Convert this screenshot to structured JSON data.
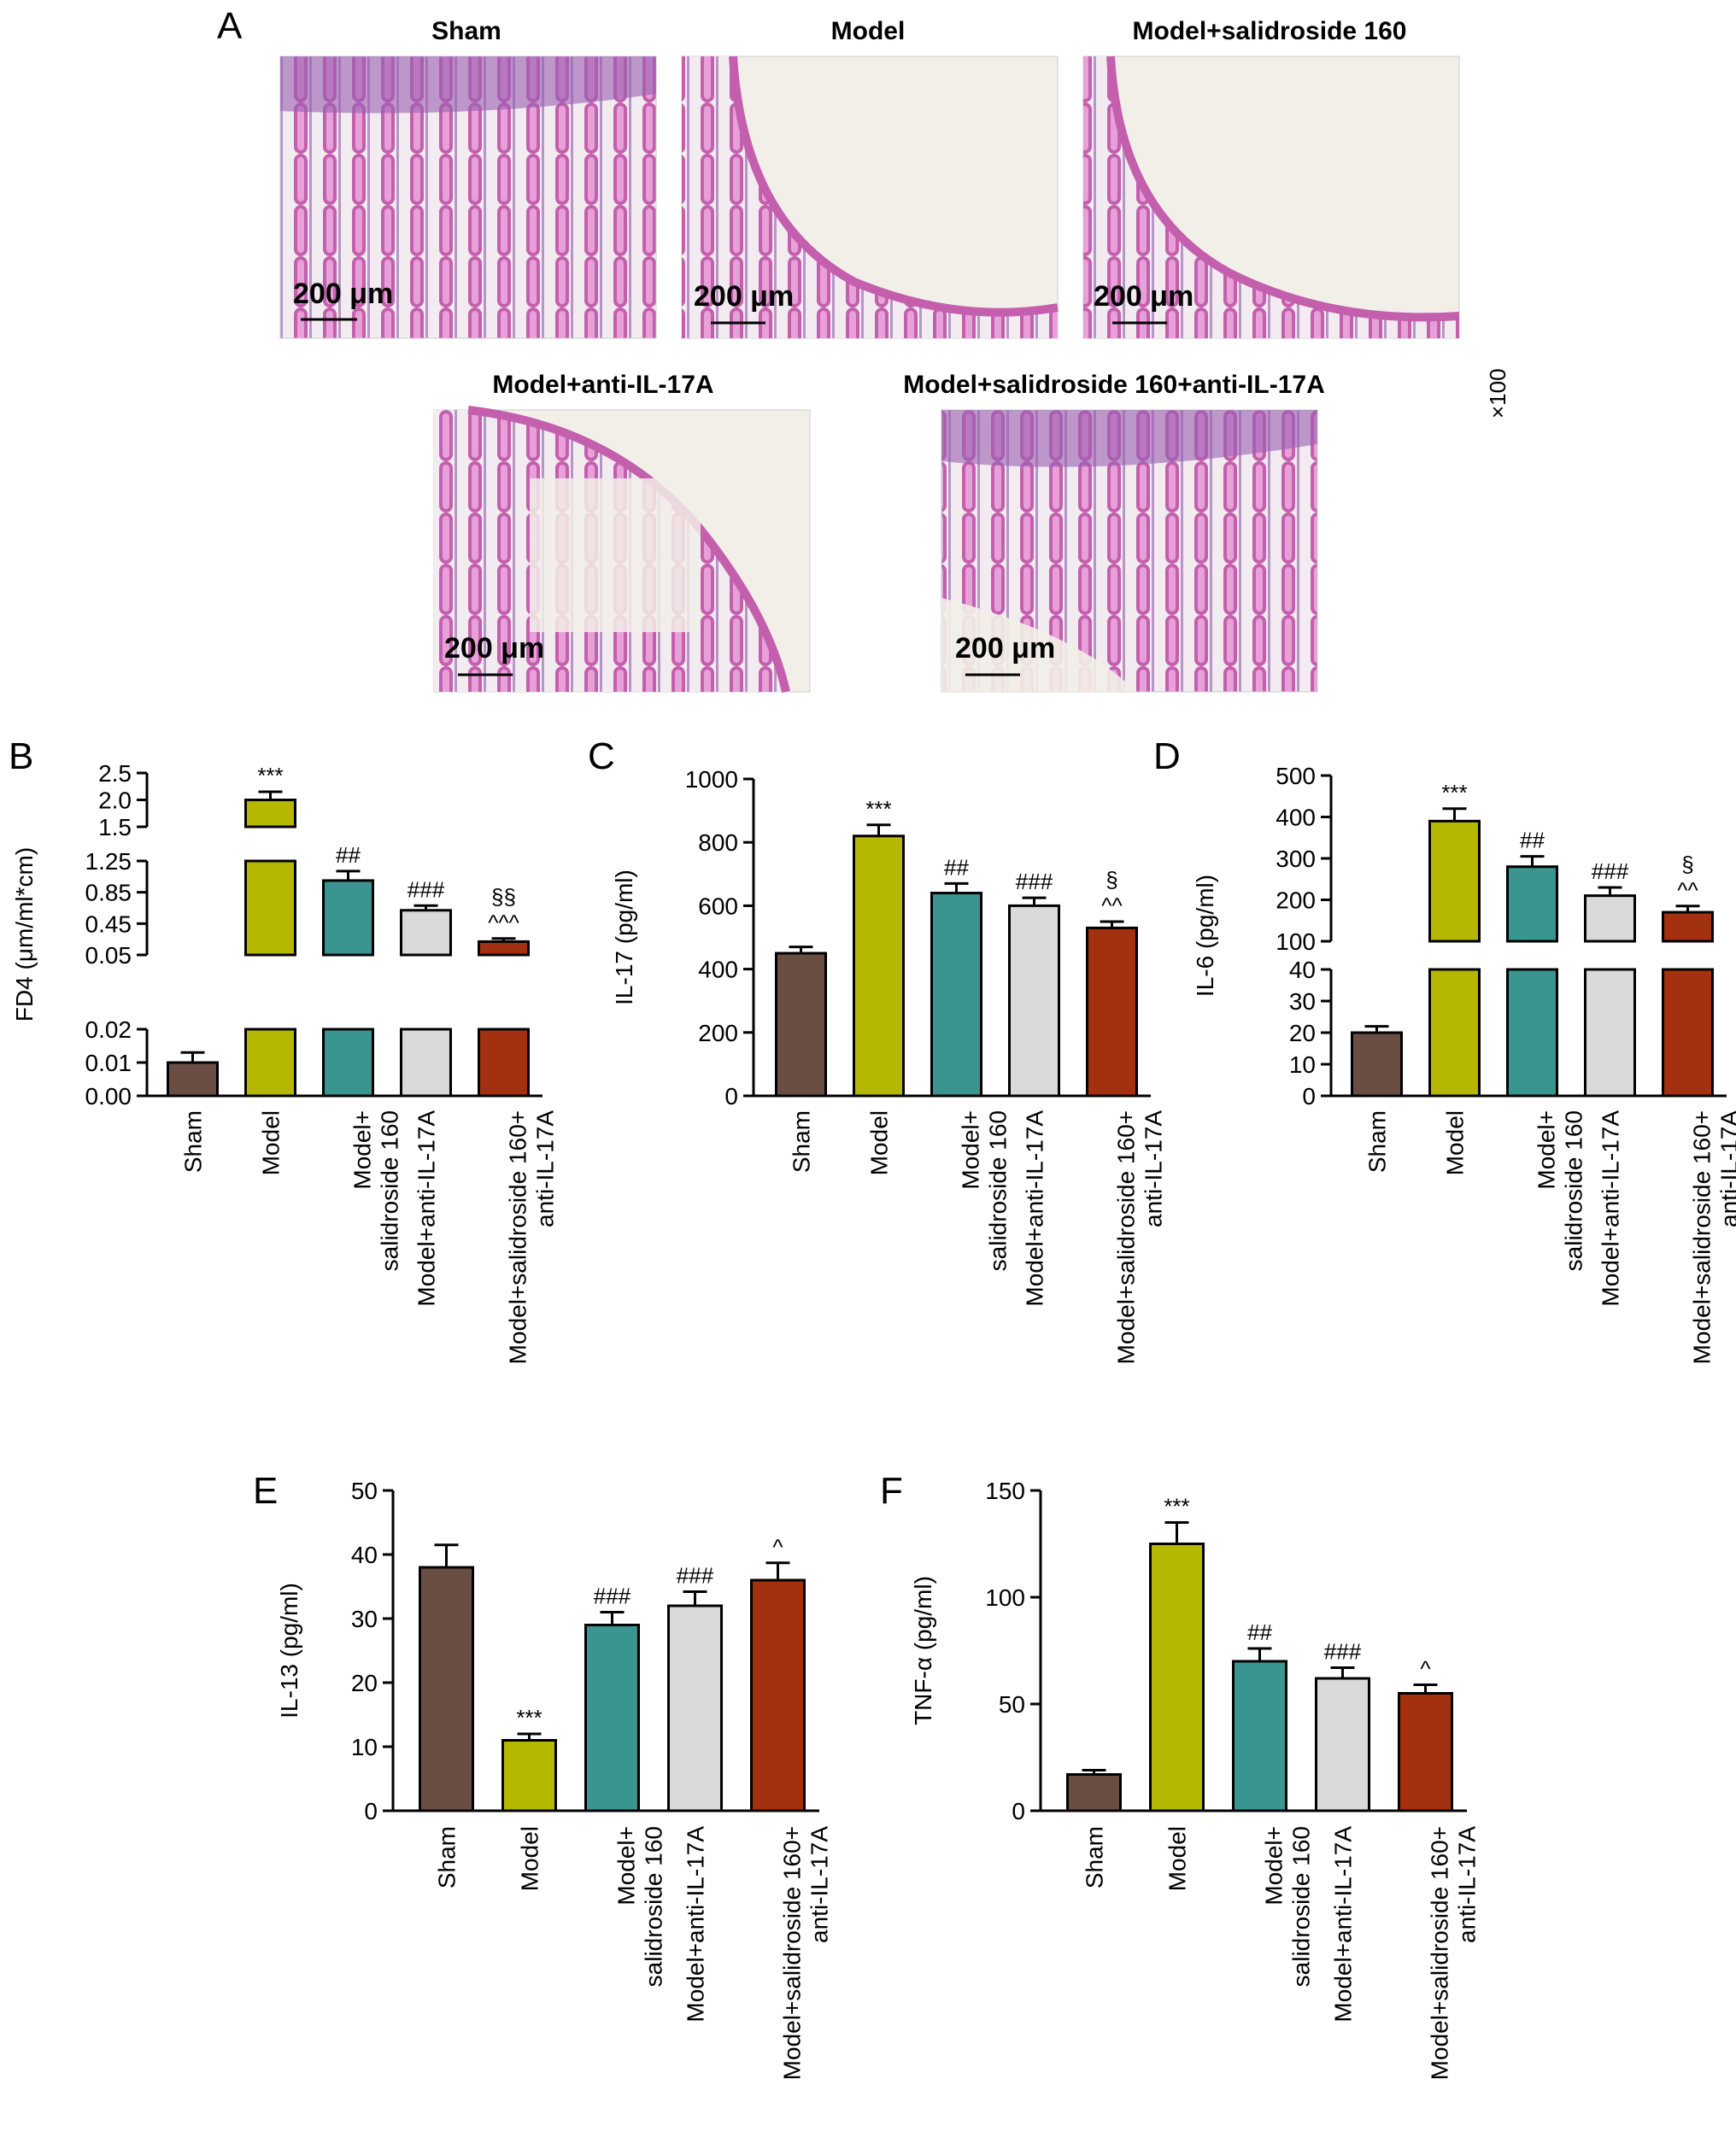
{
  "panel_a": {
    "letter": "A",
    "magnification": "×100",
    "images": [
      {
        "caption": "Sham",
        "scale_label": "200 μm"
      },
      {
        "caption": "Model",
        "scale_label": "200 μm"
      },
      {
        "caption": "Model+salidroside 160",
        "scale_label": "200 μm"
      },
      {
        "caption": "Model+anti-IL-17A",
        "scale_label": "200 μm"
      },
      {
        "caption": "Model+salidroside 160+anti-IL-17A",
        "scale_label": "200 μm"
      }
    ]
  },
  "colors": {
    "Sham": "#6b4e43",
    "Model": "#b5b800",
    "Model+salidroside 160": "#3a9590",
    "Model+anti-IL-17A": "#d9d9d9",
    "Model+salidroside 160+anti-IL-17A": "#a3300f",
    "histology": "#b24fa6"
  },
  "chart_data": [
    {
      "panel": "B",
      "type": "bar",
      "ylabel": "FD4 (μm/ml*cm)",
      "broken_axis": true,
      "segments": [
        {
          "range": [
            0.0,
            0.02
          ],
          "ticks": [
            "0.00",
            "0.01",
            "0.02"
          ]
        },
        {
          "range": [
            0.05,
            1.25
          ],
          "ticks": [
            "0.05",
            "0.45",
            "0.85",
            "1.25"
          ]
        },
        {
          "range": [
            1.5,
            2.5
          ],
          "ticks": [
            "1.5",
            "2.0",
            "2.5"
          ]
        }
      ],
      "categories": [
        "Sham",
        "Model",
        "Model+\nsalidroside 160",
        "Model+anti-IL-17A",
        "Model+salidroside 160+\nanti-IL-17A"
      ],
      "values": [
        0.01,
        2.0,
        1.0,
        0.62,
        0.22
      ],
      "errors": [
        0.003,
        0.15,
        0.12,
        0.06,
        0.04
      ],
      "annotations": [
        "",
        "***",
        "##",
        "###",
        "§§\n^^^"
      ]
    },
    {
      "panel": "C",
      "type": "bar",
      "ylabel": "IL-17 (pg/ml)",
      "ylim": [
        0,
        1000
      ],
      "ticks": [
        "0",
        "200",
        "400",
        "600",
        "800",
        "1000"
      ],
      "categories": [
        "Sham",
        "Model",
        "Model+\nsalidroside 160",
        "Model+anti-IL-17A",
        "Model+salidroside 160+\nanti-IL-17A"
      ],
      "values": [
        450,
        820,
        640,
        600,
        530
      ],
      "errors": [
        20,
        35,
        30,
        25,
        20
      ],
      "annotations": [
        "",
        "***",
        "##",
        "###",
        "§\n^^"
      ]
    },
    {
      "panel": "D",
      "type": "bar",
      "ylabel": "IL-6 (pg/ml)",
      "broken_axis": true,
      "segments": [
        {
          "range": [
            0,
            40
          ],
          "ticks": [
            "0",
            "10",
            "20",
            "30",
            "40"
          ]
        },
        {
          "range": [
            100,
            500
          ],
          "ticks": [
            "100",
            "200",
            "300",
            "400",
            "500"
          ]
        }
      ],
      "categories": [
        "Sham",
        "Model",
        "Model+\nsalidroside 160",
        "Model+anti-IL-17A",
        "Model+salidroside 160+\nanti-IL-17A"
      ],
      "values": [
        20,
        390,
        280,
        210,
        170
      ],
      "errors": [
        2,
        30,
        25,
        20,
        15
      ],
      "annotations": [
        "",
        "***",
        "##",
        "###",
        "§\n^^"
      ]
    },
    {
      "panel": "E",
      "type": "bar",
      "ylabel": "IL-13 (pg/ml)",
      "ylim": [
        0,
        50
      ],
      "ticks": [
        "0",
        "10",
        "20",
        "30",
        "40",
        "50"
      ],
      "categories": [
        "Sham",
        "Model",
        "Model+\nsalidroside 160",
        "Model+anti-IL-17A",
        "Model+salidroside 160+\nanti-IL-17A"
      ],
      "values": [
        38,
        11,
        29,
        32,
        36
      ],
      "errors": [
        3.5,
        1,
        2,
        2.2,
        2.7
      ],
      "annotations": [
        "",
        "***",
        "###",
        "###",
        "^"
      ]
    },
    {
      "panel": "F",
      "type": "bar",
      "ylabel": "TNF-α (pg/ml)",
      "ylim": [
        0,
        150
      ],
      "ticks": [
        "0",
        "50",
        "100",
        "150"
      ],
      "categories": [
        "Sham",
        "Model",
        "Model+\nsalidroside 160",
        "Model+anti-IL-17A",
        "Model+salidroside 160+\nanti-IL-17A"
      ],
      "values": [
        17,
        125,
        70,
        62,
        55
      ],
      "errors": [
        2,
        10,
        6,
        5,
        4
      ],
      "annotations": [
        "",
        "***",
        "##",
        "###",
        "^"
      ]
    }
  ]
}
